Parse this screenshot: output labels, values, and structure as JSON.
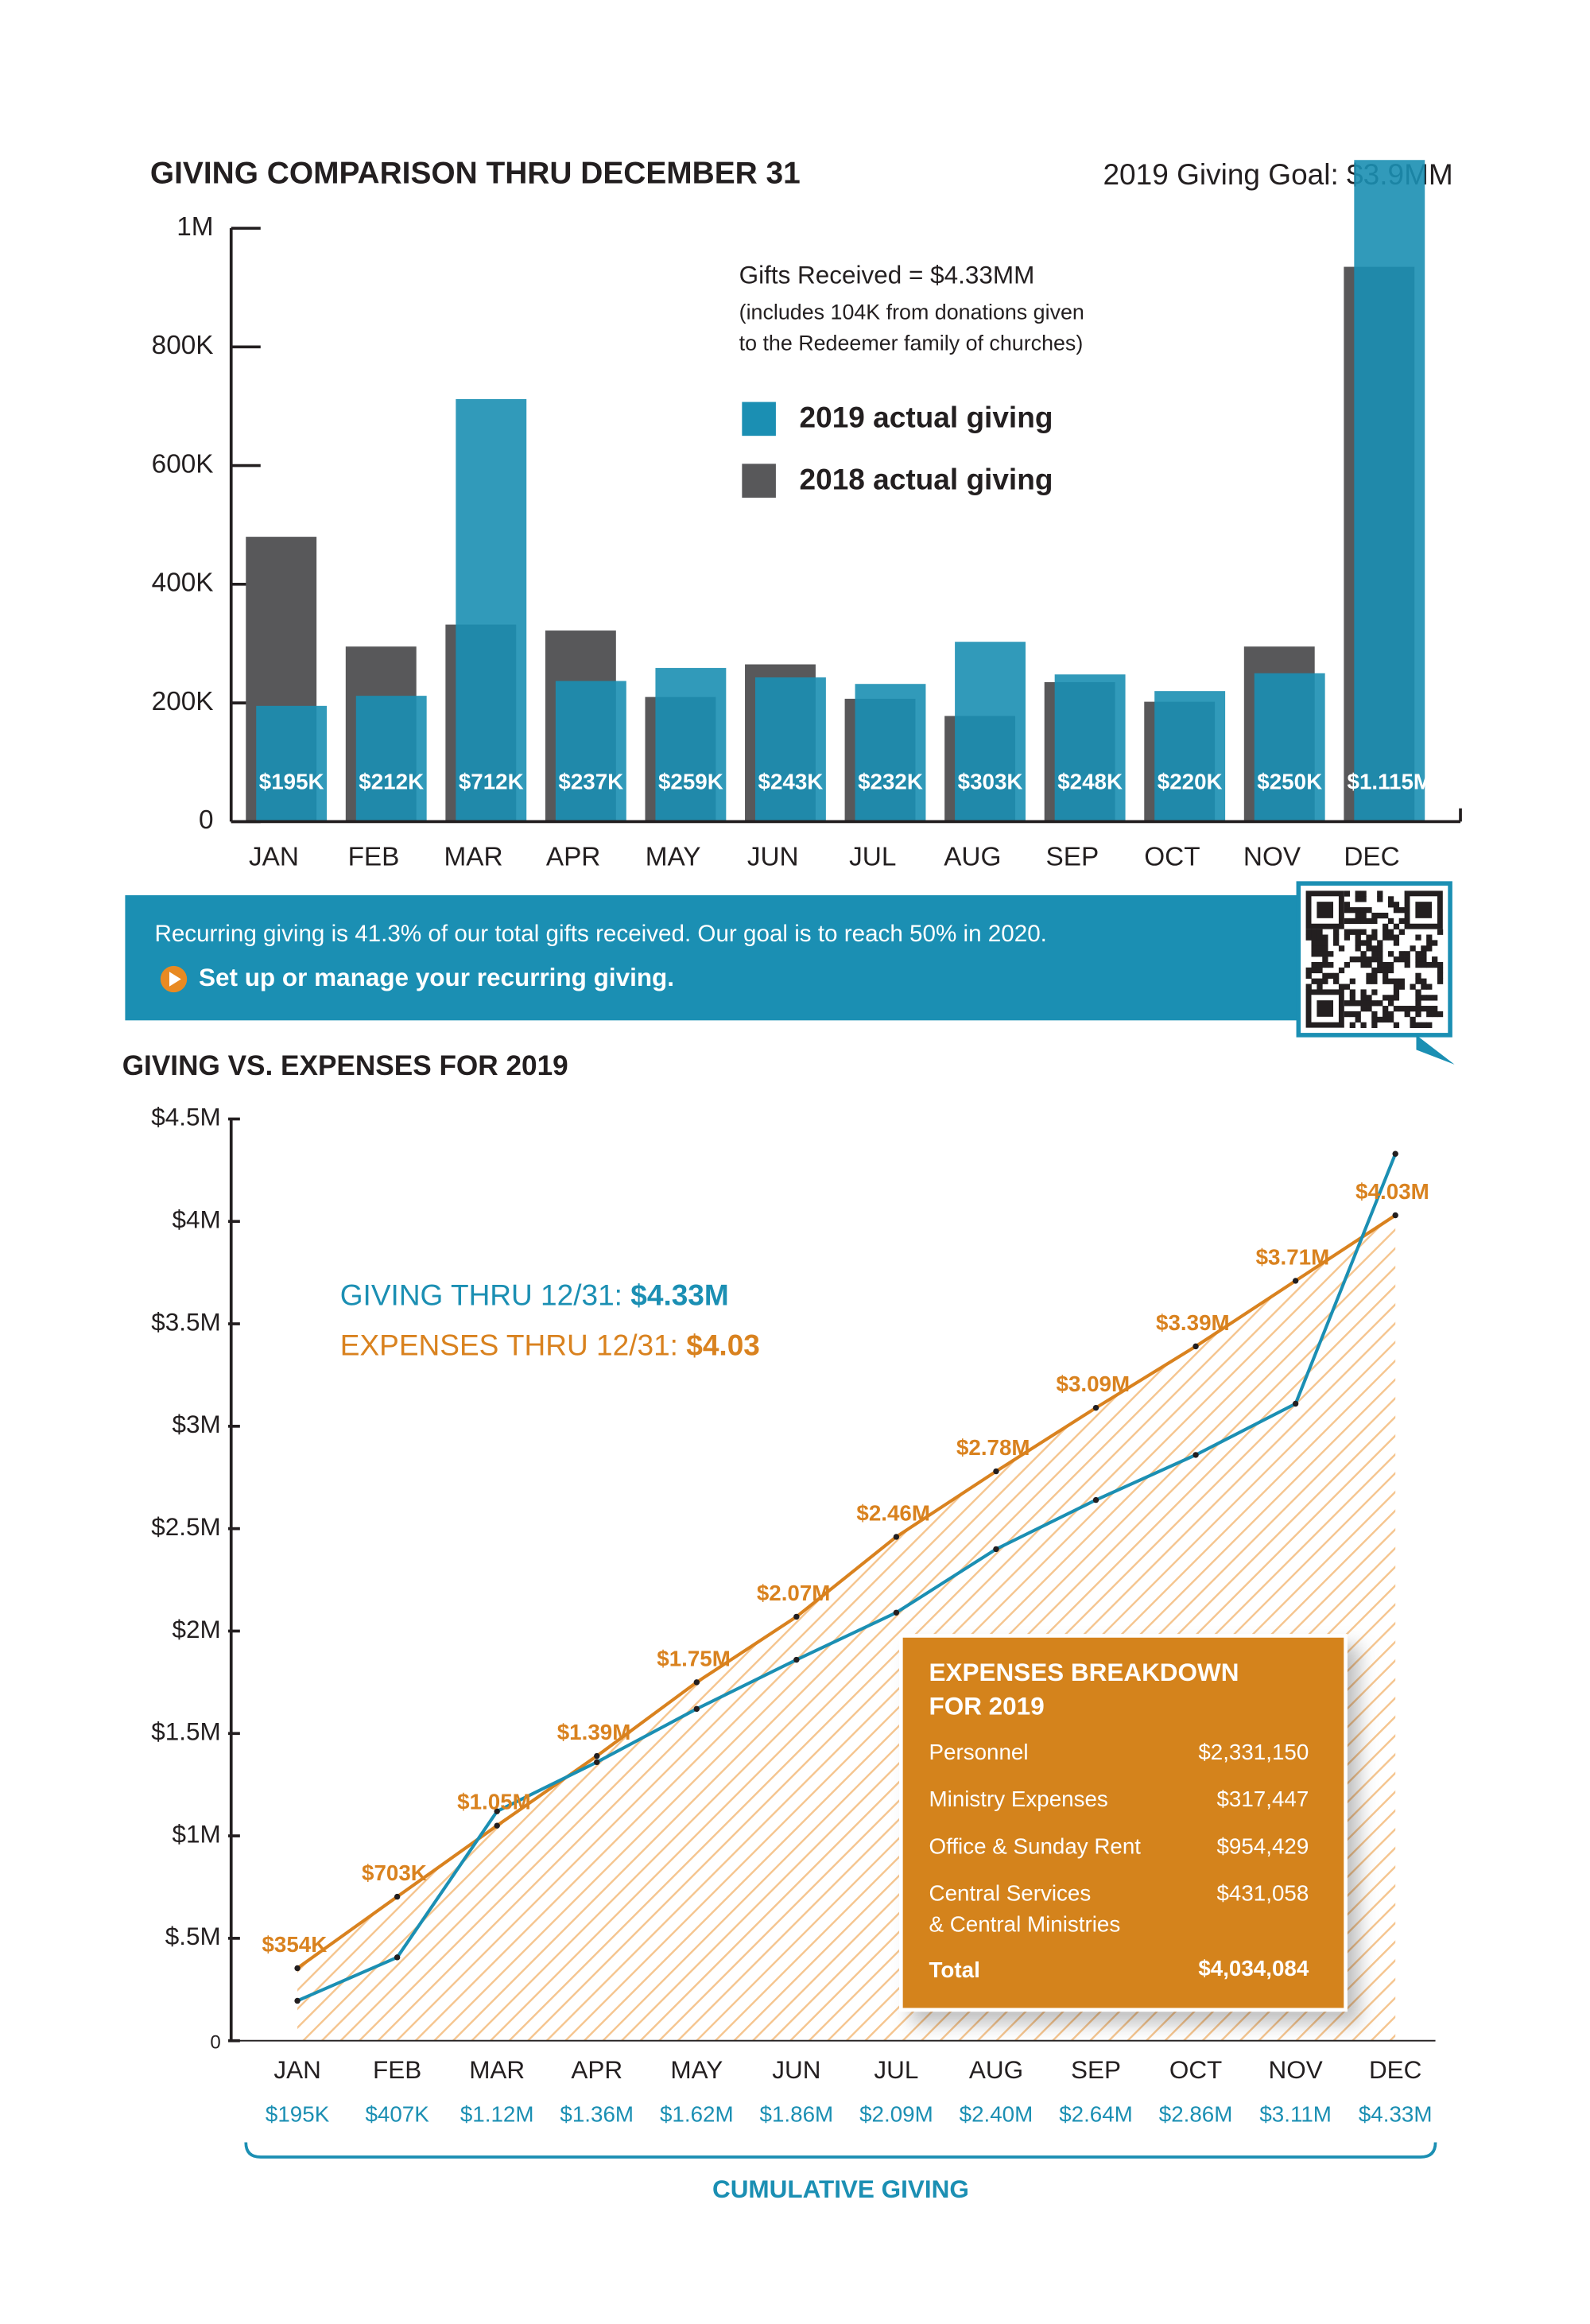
{
  "chart_data": [
    {
      "type": "bar",
      "title": "GIVING COMPARISON THRU DECEMBER 31",
      "subtitle": "2019 Giving Goal: $3.9MM",
      "annotations": [
        "Gifts Received = $4.33MM",
        "(includes 104K from donations given",
        "to the Redeemer family of churches)"
      ],
      "categories": [
        "JAN",
        "FEB",
        "MAR",
        "APR",
        "MAY",
        "JUN",
        "JUL",
        "AUG",
        "SEP",
        "OCT",
        "NOV",
        "DEC"
      ],
      "series": [
        {
          "name": "2019 actual giving",
          "color": "#1b8fb3",
          "values": [
            195000,
            212000,
            712000,
            237000,
            259000,
            243000,
            232000,
            303000,
            248000,
            220000,
            250000,
            1115000
          ],
          "value_labels": [
            "$195K",
            "$212K",
            "$712K",
            "$237K",
            "$259K",
            "$243K",
            "$232K",
            "$303K",
            "$248K",
            "$220K",
            "$250K",
            "$1.115M"
          ]
        },
        {
          "name": "2018 actual giving",
          "color": "#58585a",
          "values": [
            480000,
            295000,
            332000,
            322000,
            210000,
            265000,
            207000,
            178000,
            235000,
            202000,
            295000,
            935000
          ]
        }
      ],
      "ylim": [
        0,
        1000000
      ],
      "yticks": [
        0,
        {
          "value": 200000,
          "label": "200K"
        },
        {
          "value": 400000,
          "label": "400K"
        },
        {
          "value": 600000,
          "label": "600K"
        },
        {
          "value": 800000,
          "label": "800K"
        },
        {
          "value": 1000000,
          "label": "1M"
        }
      ]
    },
    {
      "type": "line",
      "title": "GIVING VS. EXPENSES FOR 2019",
      "categories": [
        "JAN",
        "FEB",
        "MAR",
        "APR",
        "MAY",
        "JUN",
        "JUL",
        "AUG",
        "SEP",
        "OCT",
        "NOV",
        "DEC"
      ],
      "series": [
        {
          "name": "GIVING THRU 12/31:",
          "total_label": "$4.33M",
          "color": "#1b8fb3",
          "values": [
            195000,
            407000,
            1120000,
            1360000,
            1620000,
            1860000,
            2090000,
            2400000,
            2640000,
            2860000,
            3110000,
            4330000
          ],
          "value_labels": [
            "$195K",
            "$407K",
            "$1.12M",
            "$1.36M",
            "$1.62M",
            "$1.86M",
            "$2.09M",
            "$2.40M",
            "$2.64M",
            "$2.86M",
            "$3.11M",
            "$4.33M"
          ]
        },
        {
          "name": "EXPENSES THRU 12/31:",
          "total_label": "$4.03",
          "color": "#d9821f",
          "values": [
            354000,
            703000,
            1050000,
            1390000,
            1750000,
            2070000,
            2460000,
            2780000,
            3090000,
            3390000,
            3710000,
            4030000
          ],
          "value_labels": [
            "$354K",
            "$703K",
            "$1.05M",
            "$1.39M",
            "$1.75M",
            "$2.07M",
            "$2.46M",
            "$2.78M",
            "$3.09M",
            "$3.39M",
            "$3.71M",
            "$4.03M"
          ]
        }
      ],
      "bracket_label": "CUMULATIVE GIVING",
      "ylim": [
        0,
        4500000
      ],
      "yticks": [
        0,
        {
          "value": 500000,
          "label": "$.5M"
        },
        {
          "value": 1000000,
          "label": "$1M"
        },
        {
          "value": 1500000,
          "label": "$1.5M"
        },
        {
          "value": 2000000,
          "label": "$2M"
        },
        {
          "value": 2500000,
          "label": "$2.5M"
        },
        {
          "value": 3000000,
          "label": "$3M"
        },
        {
          "value": 3500000,
          "label": "$3.5M"
        },
        {
          "value": 4000000,
          "label": "$4M"
        },
        {
          "value": 4500000,
          "label": "$4.5M"
        }
      ],
      "breakdown": {
        "title_lines": [
          "EXPENSES BREAKDOWN",
          "FOR 2019"
        ],
        "rows": [
          {
            "label": [
              "Personnel"
            ],
            "amount": "$2,331,150"
          },
          {
            "label": [
              "Ministry Expenses"
            ],
            "amount": "$317,447"
          },
          {
            "label": [
              "Office & Sunday Rent"
            ],
            "amount": "$954,429"
          },
          {
            "label": [
              "Central Services",
              "& Central Ministries"
            ],
            "amount": "$431,058"
          }
        ],
        "total": {
          "label": "Total",
          "amount": "$4,034,084"
        }
      }
    }
  ],
  "banner": {
    "text": "Recurring giving is 41.3% of our total gifts received. Our goal is to reach 50% in 2020.",
    "link": "Set up or manage your recurring giving."
  }
}
